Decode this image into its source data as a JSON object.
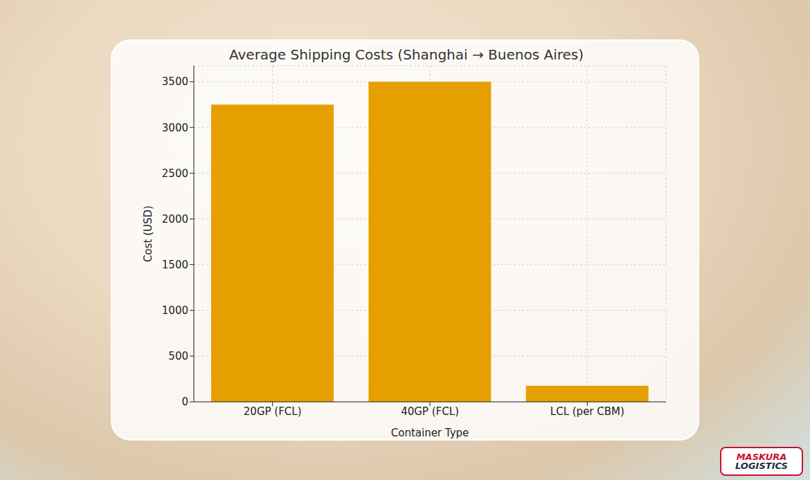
{
  "chart_data": {
    "type": "bar",
    "title": "Average Shipping Costs (Shanghai → Buenos Aires)",
    "x_label": "Container Type",
    "y_label": "Cost (USD)",
    "categories": [
      "20GP (FCL)",
      "40GP (FCL)",
      "LCL (per CBM)"
    ],
    "values": [
      3250,
      3500,
      175
    ],
    "color": "#e69f00",
    "ylim": [
      0,
      3675
    ],
    "yticks": [
      0,
      500,
      1000,
      1500,
      2000,
      2500,
      3000,
      3500
    ],
    "grid": true
  },
  "logo": [
    "MASKURA",
    "LOGISTICS"
  ]
}
